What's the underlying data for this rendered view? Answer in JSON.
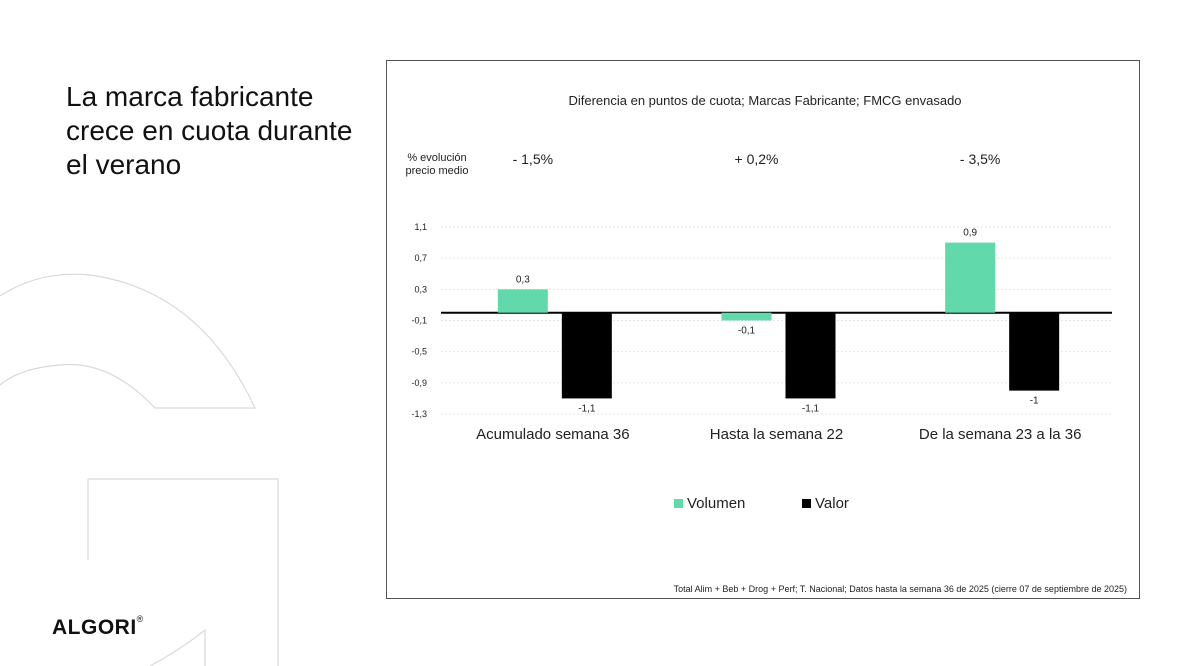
{
  "headline": "La marca fabricante crece en cuota durante el verano",
  "brand": {
    "name": "ALGORI",
    "mark": "®"
  },
  "colors": {
    "volumen": "#62d9aa",
    "valor": "#000000"
  },
  "chart_data": {
    "type": "bar",
    "title": "Diferencia en puntos de cuota; Marcas Fabricante; FMCG envasado",
    "price_label": [
      "% evolución",
      "precio medio"
    ],
    "price_changes": [
      "- 1,5%",
      "+ 0,2%",
      "- 3,5%"
    ],
    "categories": [
      "Acumulado semana 36",
      "Hasta la semana 22",
      "De la semana 23 a la 36"
    ],
    "series": [
      {
        "name": "Volumen",
        "values": [
          0.3,
          -0.1,
          0.9
        ],
        "labels": [
          "0,3",
          "-0,1",
          "0,9"
        ]
      },
      {
        "name": "Valor",
        "values": [
          -1.1,
          -1.1,
          -1.0
        ],
        "labels": [
          "-1,1",
          "-1,1",
          "-1"
        ]
      }
    ],
    "yticks": [
      1.1,
      0.7,
      0.3,
      -0.1,
      -0.5,
      -0.9,
      -1.3
    ],
    "ytick_labels": [
      "1,1",
      "0,7",
      "0,3",
      "-0,1",
      "-0,5",
      "-0,9",
      "-1,3"
    ],
    "ylim": [
      -1.3,
      1.1
    ],
    "grid": true,
    "legend_position": "bottom-center",
    "footnote": "Total Alim + Beb + Drog + Perf; T. Nacional; Datos hasta la semana 36 de 2025 (cierre 07 de septiembre de 2025)"
  }
}
